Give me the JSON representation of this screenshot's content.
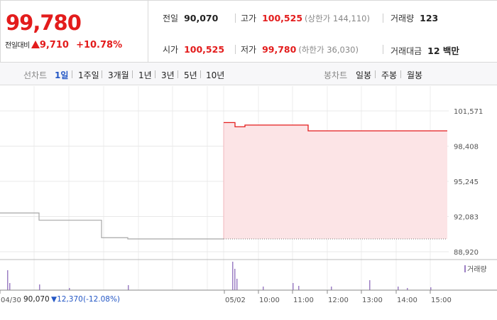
{
  "quote": {
    "current_price": "99,780",
    "change_label": "전일대비",
    "change_value": "9,710",
    "change_rate": "+10.78%",
    "prev_close_label": "전일",
    "prev_close": "90,070",
    "high_label": "고가",
    "high": "100,525",
    "upper_limit": "(상한가 144,110)",
    "volume_label": "거래량",
    "volume": "123",
    "open_label": "시가",
    "open": "100,525",
    "low_label": "저가",
    "low": "99,780",
    "lower_limit": "(하한가 36,030)",
    "amount_label": "거래대금",
    "amount": "12 백만"
  },
  "tabs": {
    "line_label": "선차트",
    "line_items": [
      "1일",
      "1주일",
      "3개월",
      "1년",
      "3년",
      "5년",
      "10년"
    ],
    "line_active": 0,
    "candle_label": "봉차트",
    "candle_items": [
      "일봉",
      "주봉",
      "월봉"
    ]
  },
  "footer": {
    "date": "04/30",
    "price": "90,070",
    "change": "▼12,370",
    "rate": "(-12.08%)"
  },
  "colors": {
    "up": "#e31c1c",
    "down": "#2457c5",
    "area": "#fce4e6",
    "volume": "#9c7fc4"
  },
  "chart_data": {
    "type": "line",
    "ylim": [
      88920,
      101571
    ],
    "y_ticks": [
      "101,571",
      "98,408",
      "95,245",
      "92,083",
      "88,920"
    ],
    "x_labels": [
      "04/30",
      "05/02",
      "10:00",
      "11:00",
      "12:00",
      "13:00",
      "14:00",
      "15:00"
    ],
    "legend_volume": "거래량",
    "prev_day": [
      {
        "x": "04/30 start",
        "y": 92400
      },
      {
        "x": "04/30 mid",
        "y": 91750
      },
      {
        "x": "04/30 late",
        "y": 90180
      },
      {
        "x": "04/30 close",
        "y": 90070
      }
    ],
    "today": [
      {
        "x": "09:00",
        "y": 100525
      },
      {
        "x": "09:20",
        "y": 100150
      },
      {
        "x": "09:30",
        "y": 100300
      },
      {
        "x": "11:05",
        "y": 99780
      },
      {
        "x": "15:30",
        "y": 99780
      }
    ],
    "reference_price": 90070
  }
}
